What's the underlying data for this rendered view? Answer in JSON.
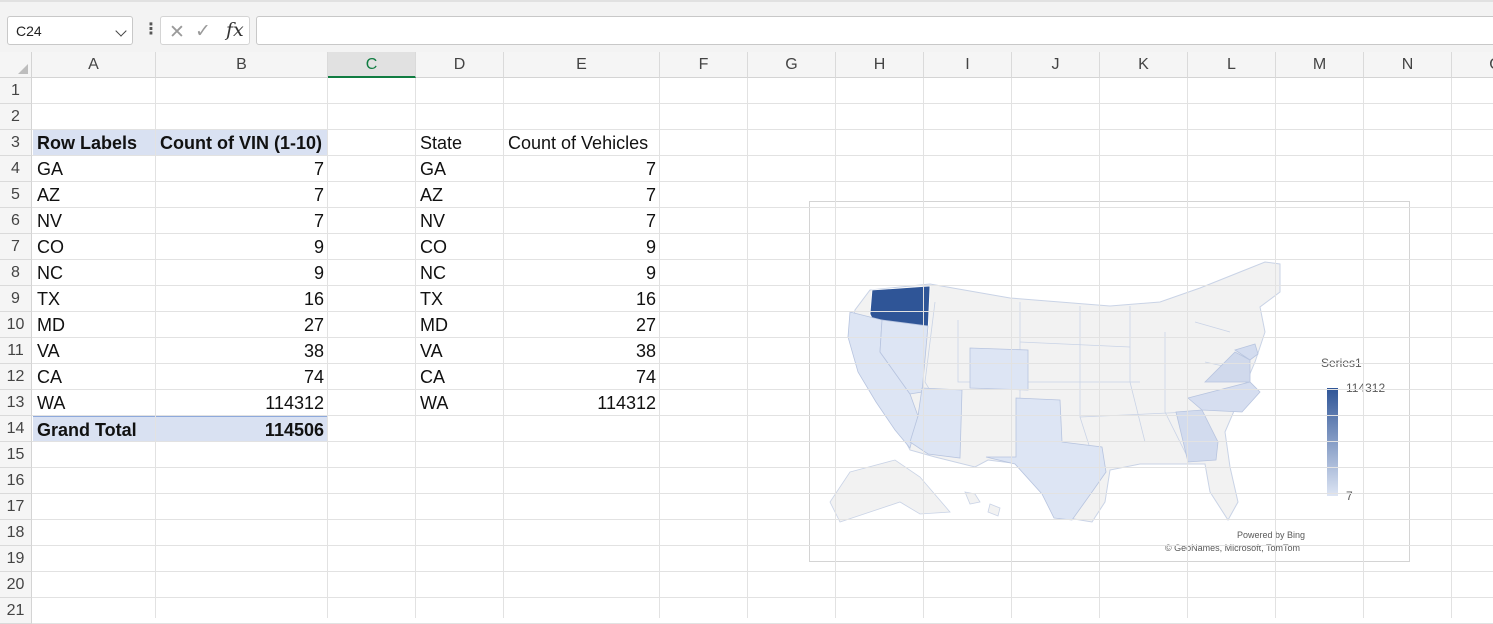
{
  "formula_bar": {
    "name_box": "C24",
    "fx_label": "fx",
    "formula": ""
  },
  "columns": [
    "A",
    "B",
    "C",
    "D",
    "E",
    "F",
    "G",
    "H",
    "I",
    "J",
    "K",
    "L",
    "M",
    "N",
    "O"
  ],
  "selected_column": "C",
  "rows": [
    "1",
    "2",
    "3",
    "4",
    "5",
    "6",
    "7",
    "8",
    "9",
    "10",
    "11",
    "12",
    "13",
    "14",
    "15",
    "16",
    "17",
    "18",
    "19",
    "20",
    "21"
  ],
  "pivot": {
    "header_labels": "Row Labels",
    "header_count": "Count of VIN (1-10)",
    "rows": [
      {
        "label": "GA",
        "value": "7"
      },
      {
        "label": "AZ",
        "value": "7"
      },
      {
        "label": "NV",
        "value": "7"
      },
      {
        "label": "CO",
        "value": "9"
      },
      {
        "label": "NC",
        "value": "9"
      },
      {
        "label": "TX",
        "value": "16"
      },
      {
        "label": "MD",
        "value": "27"
      },
      {
        "label": "VA",
        "value": "38"
      },
      {
        "label": "CA",
        "value": "74"
      },
      {
        "label": "WA",
        "value": "114312"
      }
    ],
    "total_label": "Grand Total",
    "total_value": "114506"
  },
  "table2": {
    "header_state": "State",
    "header_count": "Count of Vehicles",
    "rows": [
      {
        "label": "GA",
        "value": "7"
      },
      {
        "label": "AZ",
        "value": "7"
      },
      {
        "label": "NV",
        "value": "7"
      },
      {
        "label": "CO",
        "value": "9"
      },
      {
        "label": "NC",
        "value": "9"
      },
      {
        "label": "TX",
        "value": "16"
      },
      {
        "label": "MD",
        "value": "27"
      },
      {
        "label": "VA",
        "value": "38"
      },
      {
        "label": "CA",
        "value": "74"
      },
      {
        "label": "WA",
        "value": "114312"
      }
    ]
  },
  "chart_data": {
    "type": "map",
    "series_name": "Series1",
    "regions": [
      "GA",
      "AZ",
      "NV",
      "CO",
      "NC",
      "TX",
      "MD",
      "VA",
      "CA",
      "WA"
    ],
    "values": [
      7,
      7,
      7,
      9,
      9,
      16,
      27,
      38,
      74,
      114312
    ],
    "legend_max": "114312",
    "legend_min": "7",
    "colors": {
      "max": "#2f5597",
      "min": "#dde5f4",
      "base": "#f2f2f2"
    },
    "attribution_line1": "Powered by Bing",
    "attribution_line2": "© GeoNames, Microsoft, TomTom"
  }
}
